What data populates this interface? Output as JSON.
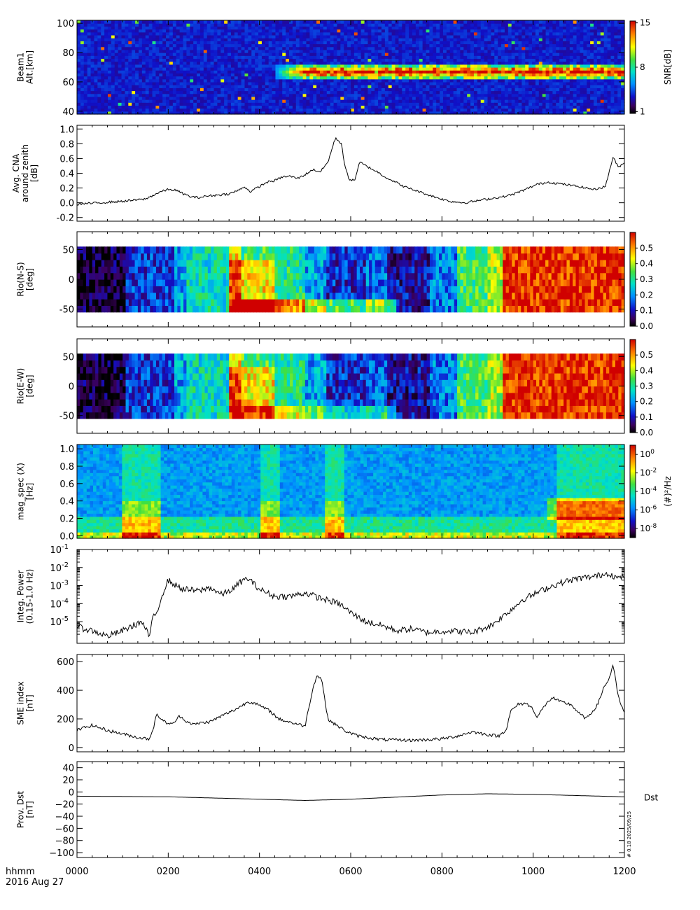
{
  "time_axis": {
    "unit_label": "hhmm",
    "date_label": "2016 Aug 27",
    "ticks": [
      "0000",
      "0200",
      "0400",
      "0600",
      "0800",
      "1000",
      "1200"
    ],
    "range_minutes": [
      0,
      720
    ]
  },
  "side_stamp": "# 0.18 2025/09/25",
  "chart_data": [
    {
      "id": "beam1",
      "type": "heatmap",
      "ylabel": [
        "Beam1",
        "Alt.[km]"
      ],
      "ylim": [
        38,
        102
      ],
      "yticks": [
        40,
        60,
        80,
        100
      ],
      "colorbar": {
        "label": "SNR[dB]",
        "range": [
          1,
          15
        ],
        "ticks": [
          "1",
          "8",
          "15"
        ],
        "colormap": "rainbow"
      },
      "features": [
        {
          "t_start": 260,
          "t_end": 720,
          "alt_center": 67,
          "alt_halfwidth": 5,
          "peak_snr": 15
        }
      ]
    },
    {
      "id": "cna",
      "type": "line",
      "ylabel": [
        "Avg. CNA",
        "around zenith",
        "[dB]"
      ],
      "ylim": [
        -0.25,
        1.05
      ],
      "yticks": [
        "-0.2",
        "0.0",
        "0.2",
        "0.4",
        "0.6",
        "0.8",
        "1.0"
      ],
      "series": [
        {
          "x": [
            0,
            30,
            60,
            90,
            100,
            110,
            120,
            130,
            140,
            150,
            160,
            170,
            180,
            200,
            215,
            220,
            228,
            240,
            250,
            260,
            270,
            280,
            290,
            300,
            310,
            320,
            330,
            340,
            348,
            352,
            358,
            365,
            372,
            380,
            395,
            405,
            415,
            430,
            450,
            470,
            490,
            510,
            540,
            560,
            575,
            590,
            605,
            620,
            640,
            660,
            680,
            695,
            705,
            712,
            720
          ],
          "y": [
            -0.02,
            0.0,
            0.02,
            0.05,
            0.1,
            0.15,
            0.18,
            0.17,
            0.12,
            0.08,
            0.07,
            0.09,
            0.1,
            0.12,
            0.18,
            0.22,
            0.15,
            0.22,
            0.28,
            0.3,
            0.35,
            0.36,
            0.33,
            0.38,
            0.45,
            0.42,
            0.55,
            0.88,
            0.8,
            0.5,
            0.32,
            0.3,
            0.55,
            0.5,
            0.42,
            0.35,
            0.3,
            0.22,
            0.15,
            0.08,
            0.02,
            0.0,
            0.05,
            0.08,
            0.12,
            0.18,
            0.25,
            0.28,
            0.25,
            0.22,
            0.18,
            0.22,
            0.62,
            0.48,
            0.55
          ]
        }
      ]
    },
    {
      "id": "rio_ns",
      "type": "heatmap",
      "ylabel": [
        "Rio(N-S)",
        "[deg]"
      ],
      "ylim": [
        -80,
        80
      ],
      "yticks": [
        "-50",
        "0",
        "50"
      ],
      "data_extent": [
        -55,
        55
      ],
      "colorbar": {
        "range": [
          0.0,
          0.6
        ],
        "ticks": [
          "0.0",
          "0.1",
          "0.2",
          "0.3",
          "0.4",
          "0.5"
        ],
        "colormap": "rainbow"
      }
    },
    {
      "id": "rio_ew",
      "type": "heatmap",
      "ylabel": [
        "Rio(E-W)",
        "[deg]"
      ],
      "ylim": [
        -80,
        80
      ],
      "yticks": [
        "-50",
        "0",
        "50"
      ],
      "data_extent": [
        -55,
        55
      ],
      "colorbar": {
        "range": [
          0.0,
          0.6
        ],
        "ticks": [
          "0.0",
          "0.1",
          "0.2",
          "0.3",
          "0.4",
          "0.5"
        ],
        "colormap": "rainbow"
      }
    },
    {
      "id": "mag_spec",
      "type": "heatmap",
      "ylabel": [
        "mag_spec (X)",
        "[Hz]"
      ],
      "ylim": [
        -0.03,
        1.05
      ],
      "yticks": [
        "0.0",
        "0.2",
        "0.4",
        "0.6",
        "0.8",
        "1.0"
      ],
      "colorbar": {
        "label": "(#)²/Hz",
        "range_log10": [
          -9,
          1
        ],
        "ticks": [
          "-8",
          "-6",
          "-4",
          "-2",
          "0"
        ],
        "colormap": "rainbow"
      }
    },
    {
      "id": "integ_power",
      "type": "line",
      "yscale": "log",
      "ylabel": [
        "Integ. Power",
        "(0.15-1.0 Hz)"
      ],
      "ylim_log10": [
        -6.2,
        -1
      ],
      "yticks_log10": [
        -5,
        -4,
        -3,
        -2,
        -1
      ],
      "series": [
        {
          "x": [
            0,
            20,
            40,
            55,
            70,
            85,
            95,
            100,
            105,
            112,
            120,
            130,
            140,
            160,
            175,
            190,
            205,
            215,
            225,
            240,
            260,
            280,
            300,
            320,
            345,
            360,
            380,
            400,
            420,
            440,
            460,
            490,
            520,
            545,
            560,
            575,
            585,
            600,
            620,
            640,
            660,
            680,
            700,
            710,
            720
          ],
          "y": [
            -5.3,
            -5.5,
            -5.8,
            -5.6,
            -5.3,
            -5.0,
            -5.8,
            -4.8,
            -4.5,
            -3.5,
            -2.7,
            -3.0,
            -3.2,
            -3.3,
            -3.1,
            -3.5,
            -3.2,
            -2.8,
            -2.6,
            -3.2,
            -3.6,
            -3.6,
            -3.4,
            -3.7,
            -4.0,
            -4.5,
            -5.0,
            -5.2,
            -5.5,
            -5.4,
            -5.6,
            -5.5,
            -5.6,
            -5.2,
            -4.7,
            -4.2,
            -3.8,
            -3.5,
            -3.1,
            -2.8,
            -2.6,
            -2.5,
            -2.3,
            -2.6,
            -2.5
          ]
        }
      ]
    },
    {
      "id": "sme",
      "type": "line",
      "ylabel": [
        "SME index",
        "[nT]"
      ],
      "ylim": [
        -30,
        650
      ],
      "yticks": [
        "0",
        "200",
        "400",
        "600"
      ],
      "series": [
        {
          "x": [
            0,
            10,
            20,
            40,
            60,
            80,
            95,
            100,
            105,
            115,
            125,
            135,
            145,
            155,
            160,
            175,
            190,
            210,
            225,
            235,
            240,
            245,
            255,
            265,
            285,
            300,
            310,
            315,
            322,
            326,
            330,
            340,
            355,
            370,
            400,
            440,
            480,
            500,
            520,
            540,
            555,
            565,
            570,
            580,
            590,
            600,
            605,
            615,
            625,
            635,
            650,
            660,
            670,
            685,
            692,
            700,
            705,
            712,
            720
          ],
          "y": [
            120,
            140,
            155,
            120,
            95,
            70,
            60,
            130,
            230,
            180,
            160,
            220,
            180,
            160,
            170,
            180,
            220,
            270,
            320,
            310,
            290,
            280,
            250,
            200,
            170,
            150,
            410,
            500,
            480,
            330,
            200,
            160,
            110,
            80,
            55,
            50,
            60,
            80,
            110,
            90,
            80,
            130,
            250,
            300,
            310,
            270,
            210,
            290,
            350,
            320,
            300,
            240,
            200,
            300,
            410,
            480,
            580,
            350,
            240
          ]
        }
      ]
    },
    {
      "id": "dst",
      "type": "line",
      "ylabel": [
        "Prov. Dst",
        "[nT]"
      ],
      "ylim": [
        -108,
        50
      ],
      "yticks": [
        "40",
        "20",
        "0",
        "−20",
        "−40",
        "−60",
        "−80",
        "−100"
      ],
      "right_label": "Dst",
      "series": [
        {
          "name": "Dst",
          "x": [
            0,
            120,
            240,
            300,
            360,
            480,
            540,
            600,
            660,
            720
          ],
          "y": [
            -7,
            -8,
            -12,
            -14,
            -12,
            -5,
            -3,
            -4,
            -6,
            -8
          ]
        }
      ]
    }
  ]
}
